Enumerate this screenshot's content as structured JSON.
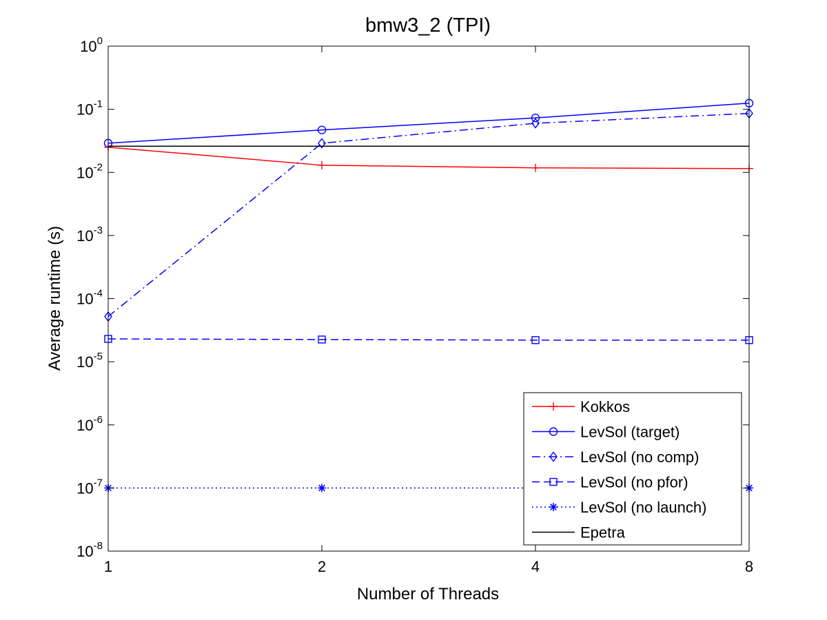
{
  "chart_data": {
    "type": "line",
    "title": "bmw3_2 (TPI)",
    "xlabel": "Number of Threads",
    "ylabel": "Average runtime (s)",
    "x": [
      1,
      2,
      4,
      8
    ],
    "x_tick_labels": [
      "1",
      "2",
      "4",
      "8"
    ],
    "x_scale": "log2",
    "y_scale": "log10",
    "ylim": [
      1e-08,
      1
    ],
    "y_tick_exponents": [
      0,
      -1,
      -2,
      -3,
      -4,
      -5,
      -6,
      -7,
      -8
    ],
    "y_tick_base": "10",
    "grid": false,
    "legend_position": "bottom-right",
    "series": [
      {
        "name": "Kokkos",
        "color": "#ff0000",
        "line": "solid",
        "marker": "plus",
        "values": [
          0.025,
          0.013,
          0.0118,
          0.0115
        ]
      },
      {
        "name": "LevSol (target)",
        "color": "#0000ff",
        "line": "solid",
        "marker": "circle",
        "values": [
          0.029,
          0.047,
          0.073,
          0.125
        ]
      },
      {
        "name": "LevSol (no comp)",
        "color": "#0000ff",
        "line": "dashdot",
        "marker": "diamond",
        "values": [
          5.2e-05,
          0.029,
          0.06,
          0.086
        ]
      },
      {
        "name": "LevSol (no pfor)",
        "color": "#0000ff",
        "line": "dashed",
        "marker": "square",
        "values": [
          2.3e-05,
          2.25e-05,
          2.2e-05,
          2.2e-05
        ]
      },
      {
        "name": "LevSol (no launch)",
        "color": "#0000ff",
        "line": "dotted",
        "marker": "asterisk",
        "values": [
          1e-07,
          1e-07,
          1e-07,
          1e-07
        ]
      },
      {
        "name": "Epetra",
        "color": "#000000",
        "line": "solid",
        "marker": "none",
        "values": [
          0.026,
          0.026,
          0.026,
          0.026
        ]
      }
    ]
  }
}
